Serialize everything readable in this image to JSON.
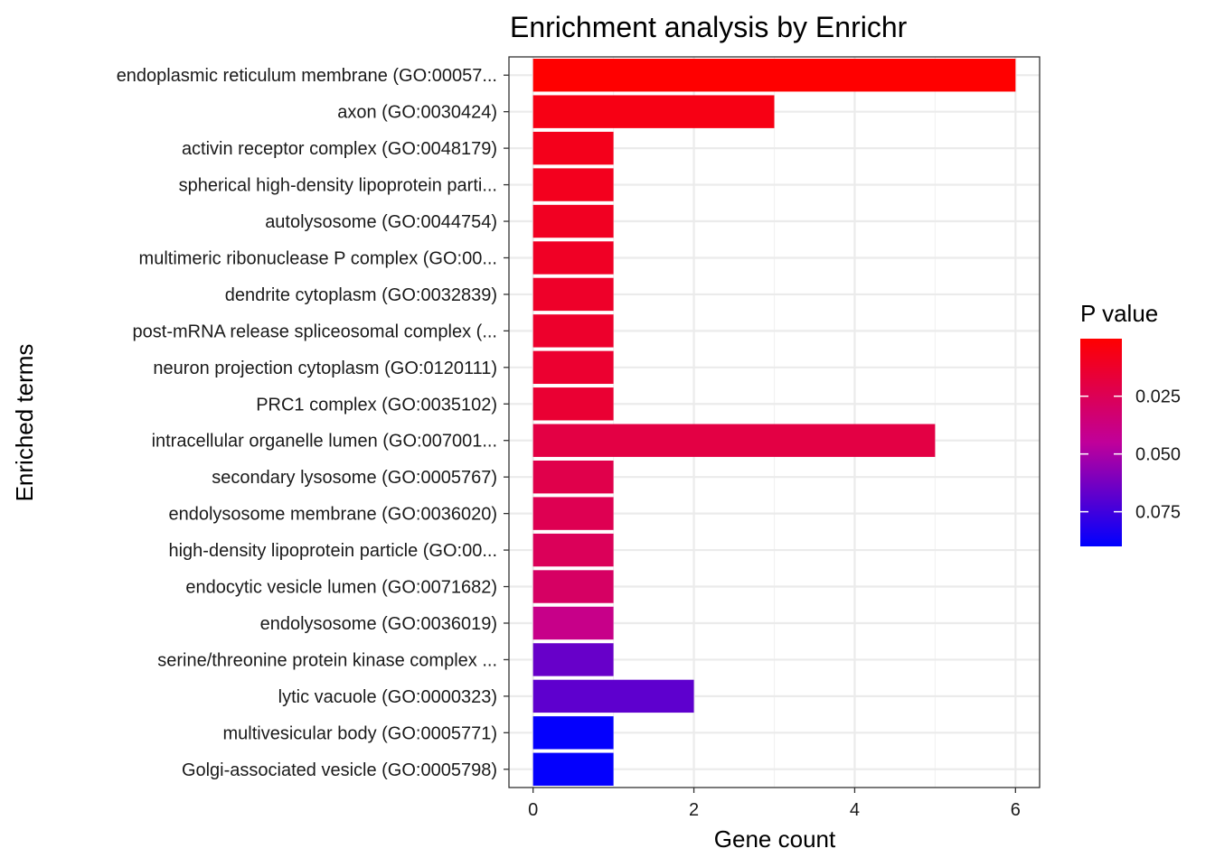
{
  "chart_data": {
    "type": "bar",
    "orientation": "horizontal",
    "title": "Enrichment analysis by Enrichr",
    "xlabel": "Gene count",
    "ylabel": "Enriched terms",
    "xlim": [
      -0.3,
      6.3
    ],
    "xticks": [
      0,
      2,
      4,
      6
    ],
    "xtick_labels": [
      "0",
      "2",
      "4",
      "6"
    ],
    "grid": true,
    "categories": [
      "endoplasmic reticulum membrane (GO:00057...",
      "axon (GO:0030424)",
      "activin receptor complex (GO:0048179)",
      "spherical high-density lipoprotein parti...",
      "autolysosome (GO:0044754)",
      "multimeric ribonuclease P complex (GO:00...",
      "dendrite cytoplasm (GO:0032839)",
      "post-mRNA release spliceosomal complex (...",
      "neuron projection cytoplasm (GO:0120111)",
      "PRC1 complex (GO:0035102)",
      "intracellular organelle lumen (GO:007001...",
      "secondary lysosome (GO:0005767)",
      "endolysosome membrane (GO:0036020)",
      "high-density lipoprotein particle (GO:00...",
      "endocytic vesicle lumen (GO:0071682)",
      "endolysosome (GO:0036019)",
      "serine/threonine protein kinase complex ...",
      "lytic vacuole (GO:0000323)",
      "multivesicular body (GO:0005771)",
      "Golgi-associated vesicle (GO:0005798)"
    ],
    "values": [
      6,
      3,
      1,
      1,
      1,
      1,
      1,
      1,
      1,
      1,
      5,
      1,
      1,
      1,
      1,
      1,
      1,
      2,
      1,
      1
    ],
    "p_values": [
      0.0001,
      0.006,
      0.008,
      0.009,
      0.01,
      0.011,
      0.012,
      0.013,
      0.014,
      0.015,
      0.02,
      0.022,
      0.024,
      0.026,
      0.029,
      0.04,
      0.066,
      0.068,
      0.089,
      0.089
    ],
    "legend": {
      "title": "P value",
      "position": "right",
      "ticks": [
        0.025,
        0.05,
        0.075
      ],
      "tick_labels": [
        "0.025",
        "0.050",
        "0.075"
      ],
      "range": [
        0.0001,
        0.09
      ],
      "low_color": "#FF0000",
      "high_color": "#0000FF"
    }
  }
}
